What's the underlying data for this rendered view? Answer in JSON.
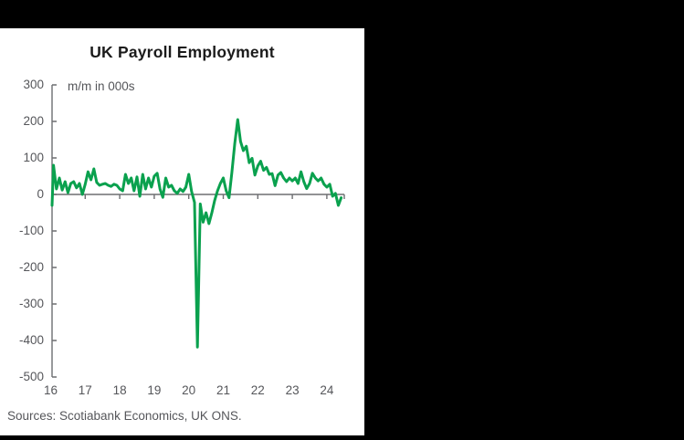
{
  "header": {
    "title": "UK Payroll Employment",
    "subtitle": "m/m in 000s"
  },
  "footer": {
    "sources": "Sources: Scotiabank Economics, UK ONS."
  },
  "colors": {
    "background": "#000000",
    "panel": "#ffffff",
    "line": "#0aa14e",
    "axis": "#6d6e71",
    "labels": "#55565a",
    "title": "#1b1b1b"
  },
  "chart_data": {
    "type": "line",
    "title": "UK Payroll Employment",
    "subtitle": "m/m in 000s",
    "xlabel": "",
    "ylabel": "m/m in 000s",
    "ylim": [
      -500,
      300
    ],
    "y_ticks": [
      300,
      200,
      100,
      0,
      -100,
      -200,
      -300,
      -400,
      -500
    ],
    "x_tick_labels": [
      "16",
      "17",
      "18",
      "19",
      "20",
      "21",
      "22",
      "23",
      "24"
    ],
    "grid": false,
    "legend": "none",
    "series": [
      {
        "name": "UK payroll employment, monthly change (thousands)",
        "color": "#0aa14e",
        "frequency": "monthly",
        "x_start": "2016-01",
        "x_end": "2024-06",
        "values": [
          -30,
          80,
          15,
          45,
          12,
          35,
          5,
          30,
          35,
          18,
          30,
          0,
          28,
          62,
          40,
          70,
          33,
          25,
          28,
          30,
          25,
          22,
          28,
          25,
          15,
          10,
          55,
          30,
          45,
          10,
          48,
          -5,
          55,
          15,
          45,
          20,
          50,
          58,
          15,
          -8,
          45,
          20,
          25,
          10,
          3,
          15,
          8,
          20,
          55,
          8,
          -22,
          -418,
          -26,
          -76,
          -50,
          -80,
          -51,
          -17,
          10,
          30,
          45,
          10,
          -9,
          60,
          140,
          205,
          145,
          120,
          132,
          87,
          99,
          53,
          78,
          91,
          66,
          74,
          55,
          57,
          24,
          53,
          60,
          45,
          35,
          45,
          37,
          45,
          30,
          62,
          35,
          16,
          30,
          58,
          45,
          37,
          45,
          28,
          20,
          28,
          -5,
          3,
          -30,
          -9
        ]
      }
    ]
  }
}
